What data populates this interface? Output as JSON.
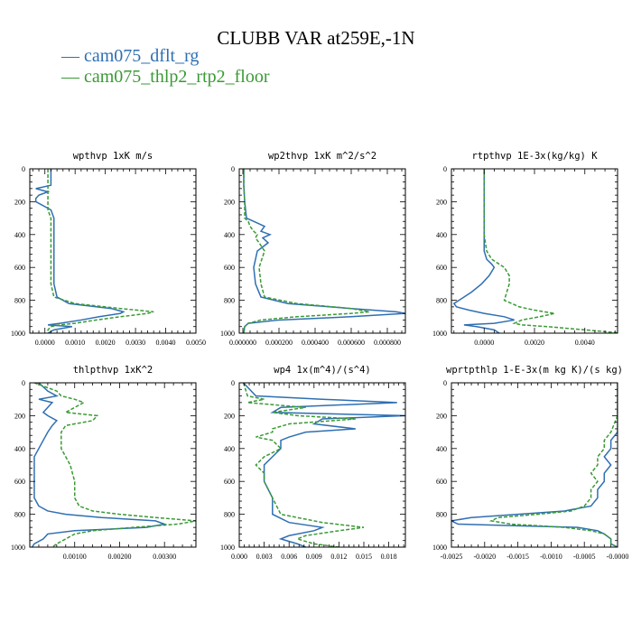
{
  "figure": {
    "title": "CLUBB VAR at259E,-1N",
    "legend": [
      {
        "symbol": "—",
        "label": "cam075_dflt_rg",
        "color": "#2f6fb2"
      },
      {
        "symbol": "—",
        "label": "cam075_thlp2_rtp2_floor",
        "color": "#3a9a35"
      }
    ]
  },
  "chart_data": [
    {
      "type": "line",
      "title": "wpthvp  1xK m/s",
      "xlim": [
        -0.0005,
        0.005
      ],
      "ylim": [
        1000,
        0
      ],
      "y_reversed": true,
      "xticks": [
        "0.0000",
        "0.0010",
        "0.0020",
        "0.0030",
        "0.0040",
        "0.0050"
      ],
      "xtick_values": [
        0,
        0.001,
        0.002,
        0.003,
        0.004,
        0.005
      ],
      "yticks": [
        "0",
        "200",
        "400",
        "600",
        "800",
        "1000"
      ],
      "y": [
        0,
        100,
        120,
        140,
        160,
        180,
        200,
        250,
        300,
        400,
        500,
        600,
        700,
        780,
        820,
        850,
        870,
        880,
        900,
        920,
        940,
        950,
        960,
        980,
        1000
      ],
      "series": [
        {
          "name": "cam075_dflt_rg",
          "color": "#2f6fb2",
          "dash": "",
          "values": [
            0.0002,
            0.0002,
            -0.0003,
            0.0001,
            -0.0002,
            -0.0003,
            -0.0003,
            0.0002,
            0.0003,
            0.0003,
            0.0003,
            0.0003,
            0.0003,
            0.0004,
            0.0008,
            0.0022,
            0.0026,
            0.0025,
            0.0018,
            0.0012,
            0.0005,
            0.0001,
            0.0009,
            0.0003,
            0.0001
          ]
        },
        {
          "name": "cam075_thlp2_rtp2_floor",
          "color": "#3a9a35",
          "dash": "4,2",
          "values": [
            0.0001,
            0.0001,
            0.0001,
            0.0001,
            0.0001,
            0.0001,
            0.0001,
            0.0001,
            0.0002,
            0.0002,
            0.0002,
            0.0002,
            0.0002,
            0.0003,
            0.001,
            0.0025,
            0.0036,
            0.0034,
            0.0025,
            0.0017,
            0.001,
            0.0005,
            0.0002,
            0.0001,
            0.0001
          ]
        }
      ]
    },
    {
      "type": "line",
      "title": "wp2thvp  1xK m^2/s^2",
      "xlim": [
        -2e-05,
        0.0009
      ],
      "ylim": [
        1000,
        0
      ],
      "y_reversed": true,
      "xticks": [
        "0.000000",
        "0.000200",
        "0.000400",
        "0.000600",
        "0.000800"
      ],
      "xtick_values": [
        0,
        0.0002,
        0.0004,
        0.0006,
        0.0008
      ],
      "yticks": [
        "0",
        "200",
        "400",
        "600",
        "800",
        "1000"
      ],
      "y": [
        0,
        100,
        200,
        300,
        320,
        350,
        380,
        400,
        420,
        450,
        500,
        600,
        700,
        780,
        820,
        850,
        870,
        880,
        900,
        920,
        940,
        960,
        1000
      ],
      "series": [
        {
          "name": "cam075_dflt_rg",
          "color": "#2f6fb2",
          "dash": "",
          "values": [
            5e-06,
            5e-06,
            1e-05,
            2e-05,
            6e-05,
            0.00012,
            0.0001,
            0.00015,
            0.00011,
            0.00014,
            8e-05,
            6e-05,
            7e-05,
            0.0001,
            0.00025,
            0.0006,
            0.00085,
            0.0009,
            0.0006,
            0.0002,
            3e-05,
            1e-05,
            5e-06
          ]
        },
        {
          "name": "cam075_thlp2_rtp2_floor",
          "color": "#3a9a35",
          "dash": "4,2",
          "values": [
            5e-06,
            5e-06,
            1e-05,
            1e-05,
            3e-05,
            4e-05,
            6e-05,
            8e-05,
            7e-05,
            9e-05,
            0.00012,
            9e-05,
            0.0001,
            0.00012,
            0.0003,
            0.0006,
            0.0007,
            0.0006,
            0.0003,
            0.0001,
            3e-05,
            1e-05,
            5e-06
          ]
        }
      ]
    },
    {
      "type": "line",
      "title": "rtpthvp  1E-3x(kg/kg) K",
      "xlim": [
        -0.0013,
        0.0053
      ],
      "ylim": [
        1000,
        0
      ],
      "y_reversed": true,
      "xticks": [
        "0.0000",
        "0.0020",
        "0.0040"
      ],
      "xtick_values": [
        0,
        0.002,
        0.004
      ],
      "yticks": [
        "0",
        "200",
        "400",
        "600",
        "800",
        "1000"
      ],
      "y": [
        0,
        200,
        400,
        500,
        550,
        580,
        600,
        650,
        700,
        750,
        800,
        820,
        840,
        860,
        880,
        900,
        920,
        940,
        950,
        960,
        980,
        1000
      ],
      "series": [
        {
          "name": "cam075_dflt_rg",
          "color": "#2f6fb2",
          "dash": "",
          "values": [
            0.0,
            0.0,
            0.0,
            0.0,
            0.0001,
            0.0003,
            0.0004,
            0.0002,
            -0.0001,
            -0.0005,
            -0.001,
            -0.0012,
            -0.0011,
            -0.0006,
            0.0,
            0.0008,
            0.0012,
            0.0004,
            -0.0008,
            -0.0003,
            0.0004,
            0.0006
          ]
        },
        {
          "name": "cam075_thlp2_rtp2_floor",
          "color": "#3a9a35",
          "dash": "4,2",
          "values": [
            0.0,
            0.0,
            0.0,
            0.0001,
            0.0003,
            0.0006,
            0.0008,
            0.001,
            0.001,
            0.0009,
            0.0008,
            0.0011,
            0.0014,
            0.002,
            0.0028,
            0.0022,
            0.0015,
            0.0012,
            0.0015,
            0.0025,
            0.004,
            0.0055
          ]
        }
      ]
    },
    {
      "type": "line",
      "title": "thlpthvp  1xK^2",
      "xlim": [
        0.0,
        0.0037
      ],
      "ylim": [
        1000,
        0
      ],
      "y_reversed": true,
      "xticks": [
        "0.00100",
        "0.00200",
        "0.00300"
      ],
      "xtick_values": [
        0.001,
        0.002,
        0.003
      ],
      "yticks": [
        "0",
        "200",
        "400",
        "600",
        "800",
        "1000"
      ],
      "y": [
        0,
        50,
        80,
        100,
        120,
        150,
        180,
        200,
        230,
        260,
        300,
        350,
        400,
        450,
        500,
        600,
        700,
        750,
        780,
        800,
        820,
        840,
        860,
        880,
        900,
        920,
        950,
        980,
        1000
      ],
      "series": [
        {
          "name": "cam075_dflt_rg",
          "color": "#2f6fb2",
          "dash": "",
          "values": [
            0.0002,
            0.0004,
            0.0006,
            0.0002,
            0.0005,
            0.0004,
            0.0003,
            0.0004,
            0.0006,
            0.0005,
            0.0004,
            0.0003,
            0.0002,
            0.0001,
            0.0001,
            0.0001,
            0.0001,
            0.0002,
            0.0004,
            0.0008,
            0.0016,
            0.0028,
            0.003,
            0.0026,
            0.001,
            0.0004,
            0.0003,
            0.0001,
            5e-05
          ]
        },
        {
          "name": "cam075_thlp2_rtp2_floor",
          "color": "#3a9a35",
          "dash": "4,2",
          "values": [
            0.0001,
            0.0006,
            0.0007,
            0.001,
            0.0012,
            0.001,
            0.0008,
            0.0015,
            0.0014,
            0.0008,
            0.0007,
            0.0007,
            0.0007,
            0.0008,
            0.0009,
            0.001,
            0.001,
            0.0011,
            0.0014,
            0.002,
            0.0028,
            0.0037,
            0.0033,
            0.0023,
            0.0014,
            0.001,
            0.0008,
            0.0006,
            0.0005
          ]
        }
      ]
    },
    {
      "type": "line",
      "title": "wp4  1x(m^4)/(s^4)",
      "xlim": [
        0.0,
        0.02
      ],
      "ylim": [
        1000,
        0
      ],
      "y_reversed": true,
      "xticks": [
        "0.000",
        "0.003",
        "0.006",
        "0.009",
        "0.012",
        "0.015",
        "0.018"
      ],
      "xtick_values": [
        0,
        0.003,
        0.006,
        0.009,
        0.012,
        0.015,
        0.018
      ],
      "yticks": [
        "0",
        "200",
        "400",
        "600",
        "800",
        "1000"
      ],
      "y": [
        0,
        80,
        100,
        120,
        150,
        180,
        200,
        220,
        250,
        280,
        300,
        330,
        350,
        400,
        450,
        500,
        550,
        600,
        700,
        800,
        850,
        880,
        900,
        930,
        950,
        980,
        1000
      ],
      "series": [
        {
          "name": "cam075_dflt_rg",
          "color": "#2f6fb2",
          "dash": "",
          "values": [
            0.0005,
            0.002,
            0.01,
            0.019,
            0.005,
            0.004,
            0.02,
            0.01,
            0.009,
            0.014,
            0.008,
            0.006,
            0.005,
            0.005,
            0.004,
            0.003,
            0.003,
            0.003,
            0.004,
            0.004,
            0.006,
            0.01,
            0.009,
            0.006,
            0.005,
            0.007,
            0.008
          ]
        },
        {
          "name": "cam075_thlp2_rtp2_floor",
          "color": "#3a9a35",
          "dash": "4,2",
          "values": [
            0.0005,
            0.001,
            0.003,
            0.001,
            0.008,
            0.004,
            0.007,
            0.014,
            0.006,
            0.004,
            0.004,
            0.002,
            0.004,
            0.005,
            0.003,
            0.002,
            0.003,
            0.003,
            0.004,
            0.005,
            0.01,
            0.015,
            0.012,
            0.008,
            0.007,
            0.009,
            0.012
          ]
        }
      ]
    },
    {
      "type": "line",
      "title": "wprtpthlp  1-E-3x(m kg K)/(s kg)",
      "xlim": [
        -0.0025,
        0.0
      ],
      "ylim": [
        1000,
        0
      ],
      "y_reversed": true,
      "xticks": [
        "-0.0025",
        "-0.0020",
        "-0.0015",
        "-0.0010",
        "-0.0005",
        "-0.0000"
      ],
      "xtick_values": [
        -0.0025,
        -0.002,
        -0.0015,
        -0.001,
        -0.0005,
        0
      ],
      "yticks": [
        "0",
        "200",
        "400",
        "600",
        "800",
        "1000"
      ],
      "y": [
        0,
        200,
        300,
        350,
        400,
        450,
        500,
        550,
        600,
        650,
        700,
        750,
        780,
        800,
        820,
        840,
        860,
        870,
        880,
        900,
        920,
        950,
        980,
        1000
      ],
      "series": [
        {
          "name": "cam075_dflt_rg",
          "color": "#2f6fb2",
          "dash": "",
          "values": [
            0.0,
            0.0,
            0.0,
            -0.0001,
            -0.0001,
            -0.0002,
            -0.0001,
            -0.0002,
            -0.0002,
            -0.0003,
            -0.0003,
            -0.0004,
            -0.0008,
            -0.0015,
            -0.0022,
            -0.0025,
            -0.0024,
            -0.0015,
            -0.0006,
            -0.0003,
            -0.0002,
            -0.0001,
            -0.0001,
            0.0
          ]
        },
        {
          "name": "cam075_thlp2_rtp2_floor",
          "color": "#3a9a35",
          "dash": "4,2",
          "values": [
            0.0,
            0.0,
            -0.0001,
            -0.0002,
            -0.0002,
            -0.0003,
            -0.0003,
            -0.0004,
            -0.0003,
            -0.0004,
            -0.0004,
            -0.0005,
            -0.0007,
            -0.0012,
            -0.0018,
            -0.0019,
            -0.0016,
            -0.0012,
            -0.0008,
            -0.0004,
            -0.0002,
            -0.0001,
            -0.0001,
            0.0
          ]
        }
      ]
    }
  ]
}
